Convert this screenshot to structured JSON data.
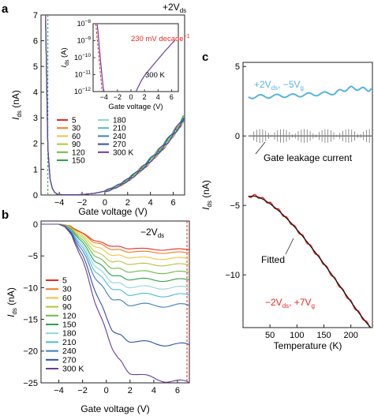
{
  "figure": {
    "bg": "#ffffff",
    "axis_color": "#222222"
  },
  "panels": [
    {
      "letter": "a"
    },
    {
      "letter": "b"
    },
    {
      "letter": "c"
    }
  ],
  "temps": [
    "5",
    "30",
    "60",
    "90",
    "120",
    "150",
    "180",
    "210",
    "240",
    "270",
    "300 K"
  ],
  "temp_colors": [
    "#e32b22",
    "#f07d1d",
    "#f5c23d",
    "#b7c43a",
    "#6abd45",
    "#2aa34a",
    "#8fd8d3",
    "#4ebbd3",
    "#3b7fbd",
    "#2c52a1",
    "#6a3d9a"
  ],
  "chart_data": [
    {
      "id": "a",
      "type": "line",
      "annotation_top": "+2V",
      "annotation_top_sub": "ds",
      "xlabel": "Gate voltage (V)",
      "ylabel": "I",
      "ylabel_sub": "ds",
      "ylabel_unit": " (nA)",
      "xlim": [
        -5.6,
        7
      ],
      "ylim": [
        0,
        7
      ],
      "xticks": [
        -4,
        -2,
        0,
        2,
        4,
        6
      ],
      "yticks": [
        0,
        1,
        2,
        3,
        4,
        5,
        6,
        7
      ],
      "threshold_x": -5.0,
      "series_x": [
        -5.2,
        -5.0,
        -4.8,
        -4.6,
        -4.4,
        -4.2,
        -4.0,
        -3.5,
        -3.0,
        -2.5,
        -2.0,
        -1.5,
        -1.0,
        -0.5,
        0,
        0.5,
        1.0,
        1.5,
        2.0,
        2.5,
        3.0,
        3.5,
        4.0,
        4.5,
        5.0,
        5.5,
        6.0,
        6.5,
        7.0
      ],
      "series": [
        {
          "name": "5",
          "values": [
            7.0,
            1.8,
            0.6,
            0.25,
            0.1,
            0.04,
            0.02,
            0.01,
            0.01,
            0.01,
            0.02,
            0.04,
            0.06,
            0.1,
            0.15,
            0.22,
            0.32,
            0.42,
            0.58,
            0.72,
            0.92,
            1.1,
            1.32,
            1.55,
            1.78,
            2.05,
            2.35,
            2.65,
            3.0
          ]
        },
        {
          "name": "30",
          "values": [
            6.9,
            1.8,
            0.6,
            0.25,
            0.1,
            0.04,
            0.02,
            0.01,
            0.01,
            0.01,
            0.02,
            0.04,
            0.06,
            0.1,
            0.15,
            0.22,
            0.32,
            0.42,
            0.58,
            0.72,
            0.92,
            1.1,
            1.32,
            1.55,
            1.78,
            2.05,
            2.35,
            2.65,
            2.95
          ]
        },
        {
          "name": "60",
          "values": [
            6.8,
            1.8,
            0.6,
            0.25,
            0.1,
            0.04,
            0.02,
            0.01,
            0.01,
            0.01,
            0.02,
            0.04,
            0.06,
            0.1,
            0.15,
            0.22,
            0.32,
            0.44,
            0.6,
            0.75,
            0.95,
            1.12,
            1.35,
            1.58,
            1.82,
            2.08,
            2.38,
            2.68,
            3.0
          ]
        },
        {
          "name": "90",
          "values": [
            6.8,
            1.8,
            0.6,
            0.25,
            0.1,
            0.04,
            0.02,
            0.01,
            0.01,
            0.01,
            0.02,
            0.04,
            0.06,
            0.1,
            0.15,
            0.22,
            0.32,
            0.45,
            0.6,
            0.76,
            0.96,
            1.14,
            1.38,
            1.6,
            1.85,
            2.1,
            2.4,
            2.7,
            3.05
          ]
        },
        {
          "name": "120",
          "values": [
            6.8,
            1.8,
            0.6,
            0.25,
            0.1,
            0.04,
            0.02,
            0.01,
            0.01,
            0.01,
            0.02,
            0.04,
            0.06,
            0.1,
            0.15,
            0.22,
            0.32,
            0.45,
            0.6,
            0.76,
            0.96,
            1.15,
            1.38,
            1.62,
            1.86,
            2.12,
            2.42,
            2.72,
            3.05
          ]
        },
        {
          "name": "150",
          "values": [
            6.8,
            1.8,
            0.6,
            0.25,
            0.1,
            0.04,
            0.02,
            0.01,
            0.01,
            0.01,
            0.02,
            0.04,
            0.06,
            0.1,
            0.15,
            0.22,
            0.32,
            0.45,
            0.6,
            0.76,
            0.96,
            1.15,
            1.38,
            1.62,
            1.86,
            2.12,
            2.42,
            2.72,
            3.05
          ]
        },
        {
          "name": "180",
          "values": [
            6.8,
            1.8,
            0.6,
            0.25,
            0.1,
            0.04,
            0.02,
            0.01,
            0.01,
            0.01,
            0.02,
            0.04,
            0.06,
            0.1,
            0.15,
            0.22,
            0.32,
            0.44,
            0.58,
            0.74,
            0.94,
            1.12,
            1.35,
            1.58,
            1.82,
            2.08,
            2.38,
            2.68,
            3.0
          ]
        },
        {
          "name": "210",
          "values": [
            6.8,
            1.8,
            0.6,
            0.25,
            0.1,
            0.04,
            0.02,
            0.01,
            0.01,
            0.01,
            0.02,
            0.04,
            0.06,
            0.1,
            0.15,
            0.22,
            0.32,
            0.44,
            0.58,
            0.74,
            0.94,
            1.12,
            1.35,
            1.58,
            1.82,
            2.08,
            2.38,
            2.68,
            3.0
          ]
        },
        {
          "name": "240",
          "values": [
            6.8,
            1.8,
            0.6,
            0.25,
            0.1,
            0.04,
            0.02,
            0.01,
            0.01,
            0.01,
            0.02,
            0.04,
            0.06,
            0.1,
            0.15,
            0.22,
            0.32,
            0.44,
            0.58,
            0.74,
            0.94,
            1.12,
            1.35,
            1.58,
            1.82,
            2.08,
            2.38,
            2.68,
            3.0
          ]
        },
        {
          "name": "270",
          "values": [
            6.8,
            1.8,
            0.6,
            0.25,
            0.1,
            0.04,
            0.02,
            0.01,
            0.01,
            0.01,
            0.02,
            0.04,
            0.06,
            0.1,
            0.15,
            0.22,
            0.32,
            0.44,
            0.58,
            0.74,
            0.94,
            1.12,
            1.35,
            1.58,
            1.82,
            2.08,
            2.38,
            2.68,
            3.0
          ]
        },
        {
          "name": "300 K",
          "values": [
            7.0,
            1.8,
            0.6,
            0.25,
            0.1,
            0.04,
            0.02,
            0.01,
            0.01,
            0.01,
            0.02,
            0.04,
            0.06,
            0.1,
            0.15,
            0.22,
            0.32,
            0.44,
            0.58,
            0.74,
            0.94,
            1.12,
            1.35,
            1.58,
            1.82,
            2.08,
            2.38,
            2.68,
            3.0
          ]
        }
      ],
      "inset": {
        "type": "line",
        "ylabel": "I",
        "ylabel_sub": "ds",
        "ylabel_unit": " (A)",
        "xlabel": "Gate voltage (V)",
        "yscale": "log",
        "xlim": [
          -5.6,
          7
        ],
        "ylim_exp": [
          -12,
          -8
        ],
        "xticks": [
          -4,
          -2,
          0,
          2,
          4,
          6
        ],
        "yticks_exp": [
          -12,
          -11,
          -10,
          -9,
          -8
        ],
        "temperature_label": "300 K",
        "annotation": "230 mV decade",
        "annotation_sup": "−1",
        "annotation_color": "#e32b22",
        "fit_x": [
          -5.2,
          -3.9
        ],
        "fit_exp": [
          -8.0,
          -13.6
        ],
        "series_x": [
          -5.0,
          -4.9,
          -4.8,
          -4.7,
          -4.6,
          -4.5,
          -4.4,
          -4.3,
          -4.2,
          -4.1,
          -4.0,
          -3.9,
          -3.8,
          -3.6,
          -3.4,
          -3.2,
          -3.0,
          -2.5,
          -2.0,
          -1.5,
          -1.0,
          -0.5,
          0,
          0.5,
          1.0,
          1.5,
          2.0,
          2.5,
          3.0,
          3.5,
          4.0,
          4.5,
          5.0,
          5.5,
          6.0,
          6.5
        ],
        "series_exp": [
          -8.05,
          -8.4,
          -8.85,
          -9.3,
          -9.75,
          -10.2,
          -10.6,
          -11.0,
          -11.4,
          -11.8,
          -12.1,
          -12.3,
          -12.4,
          -12.45,
          -12.5,
          -12.5,
          -12.5,
          -12.5,
          -12.45,
          -12.42,
          -12.4,
          -12.35,
          -12.3,
          -12.2,
          -11.8,
          -11.4,
          -11.1,
          -10.85,
          -10.6,
          -10.35,
          -10.1,
          -9.85,
          -9.6,
          -9.38,
          -9.15,
          -8.95
        ]
      }
    },
    {
      "id": "b",
      "type": "line",
      "annotation_top": "−2V",
      "annotation_top_sub": "ds",
      "xlabel": "Gate voltage (V)",
      "ylabel": "I",
      "ylabel_sub": "ds",
      "ylabel_unit": " (nA)",
      "xlim": [
        -5.5,
        7
      ],
      "ylim": [
        -25,
        0.5
      ],
      "xticks": [
        -4,
        -2,
        0,
        2,
        4,
        6
      ],
      "yticks": [
        0,
        -5,
        -10,
        -15,
        -20,
        -25
      ],
      "marker_x": 6.8,
      "series_x": [
        -5.5,
        -4.0,
        -3.5,
        -3.0,
        -2.5,
        -2.0,
        -1.5,
        -1.0,
        -0.5,
        0,
        0.5,
        1.0,
        1.5,
        2.0,
        3.0,
        4.0,
        5.0,
        6.0,
        7.0
      ],
      "series": [
        {
          "name": "5",
          "values": [
            0,
            0,
            -0.1,
            -0.3,
            -0.8,
            -1.5,
            -2.0,
            -2.5,
            -2.9,
            -3.2,
            -3.4,
            -3.6,
            -3.7,
            -3.8,
            -3.9,
            -3.95,
            -4.0,
            -4.0,
            -4.0
          ]
        },
        {
          "name": "30",
          "values": [
            0,
            0,
            -0.1,
            -0.4,
            -0.9,
            -1.6,
            -2.2,
            -2.8,
            -3.2,
            -3.6,
            -3.9,
            -4.1,
            -4.2,
            -4.3,
            -4.4,
            -4.4,
            -4.5,
            -4.5,
            -4.5
          ]
        },
        {
          "name": "60",
          "values": [
            0,
            0,
            -0.1,
            -0.5,
            -1.1,
            -1.9,
            -2.7,
            -3.4,
            -3.9,
            -4.4,
            -4.8,
            -5.0,
            -5.1,
            -5.2,
            -5.3,
            -5.4,
            -5.4,
            -5.4,
            -5.4
          ]
        },
        {
          "name": "90",
          "values": [
            0,
            0,
            -0.2,
            -0.6,
            -1.3,
            -2.2,
            -3.2,
            -4.1,
            -4.8,
            -5.4,
            -5.8,
            -6.0,
            -6.1,
            -6.2,
            -6.3,
            -6.4,
            -6.4,
            -6.4,
            -6.4
          ]
        },
        {
          "name": "120",
          "values": [
            0,
            0,
            -0.2,
            -0.7,
            -1.5,
            -2.6,
            -3.7,
            -4.8,
            -5.6,
            -6.3,
            -6.8,
            -7.1,
            -7.3,
            -7.4,
            -7.5,
            -7.6,
            -7.6,
            -7.6,
            -7.6
          ]
        },
        {
          "name": "150",
          "values": [
            0,
            0,
            -0.2,
            -0.8,
            -1.7,
            -3.0,
            -4.3,
            -5.6,
            -6.5,
            -7.3,
            -7.9,
            -8.3,
            -8.5,
            -8.6,
            -8.7,
            -8.8,
            -8.8,
            -8.8,
            -8.8
          ]
        },
        {
          "name": "180",
          "values": [
            0,
            0,
            -0.3,
            -0.9,
            -2.0,
            -3.4,
            -4.9,
            -6.3,
            -7.4,
            -8.3,
            -9.0,
            -9.4,
            -9.7,
            -9.8,
            -9.9,
            -10.0,
            -10.0,
            -10.0,
            -10.0
          ]
        },
        {
          "name": "210",
          "values": [
            0,
            0,
            -0.3,
            -1.0,
            -2.2,
            -3.8,
            -5.5,
            -7.1,
            -8.3,
            -9.3,
            -10.0,
            -10.5,
            -10.8,
            -11.0,
            -11.1,
            -11.2,
            -11.2,
            -11.2,
            -11.2
          ]
        },
        {
          "name": "240",
          "values": [
            0,
            0,
            -0.3,
            -1.1,
            -2.5,
            -4.3,
            -6.2,
            -8.1,
            -9.6,
            -10.8,
            -11.6,
            -12.1,
            -12.4,
            -12.6,
            -12.7,
            -12.8,
            -12.8,
            -12.8,
            -12.8
          ]
        },
        {
          "name": "270",
          "values": [
            0,
            0,
            -0.4,
            -1.3,
            -2.9,
            -5.0,
            -7.5,
            -10.0,
            -12.5,
            -14.7,
            -16.5,
            -17.5,
            -18.0,
            -18.3,
            -18.6,
            -18.8,
            -18.9,
            -19.0,
            -19.0
          ]
        },
        {
          "name": "300 K",
          "values": [
            0,
            0,
            -0.4,
            -1.5,
            -3.3,
            -5.8,
            -8.8,
            -11.8,
            -14.6,
            -17.0,
            -19.3,
            -21.3,
            -22.5,
            -23.3,
            -23.9,
            -24.3,
            -24.6,
            -24.8,
            -25.0
          ]
        }
      ]
    },
    {
      "id": "c",
      "type": "line",
      "xlabel": "Temperature (K)",
      "ylabel": "I",
      "ylabel_sub": "ds",
      "ylabel_unit": " (nA)",
      "xlim": [
        0,
        240
      ],
      "ylim": [
        -13.8,
        5.3
      ],
      "xticks": [
        50,
        100,
        150,
        200
      ],
      "yticks": [
        5,
        0,
        -5,
        -10
      ],
      "label_top": "+2V",
      "label_top_sub1": "ds",
      "label_top_mid": ", −5V",
      "label_top_sub2": "g",
      "label_top_color": "#56b4e0",
      "label_leak": "Gate leakage current",
      "label_fit": "Fitted",
      "label_bottom": "−2V",
      "label_bottom_sub1": "ds",
      "label_bottom_mid": ", +7V",
      "label_bottom_sub2": "g",
      "label_bottom_color": "#e32b22",
      "series": [
        {
          "name": "+2Vds, −5Vg",
          "color": "#56b4e0",
          "x": [
            10,
            30,
            50,
            70,
            90,
            110,
            130,
            150,
            170,
            185,
            200,
            215,
            230,
            240
          ],
          "y": [
            2.8,
            2.85,
            2.85,
            2.9,
            2.9,
            2.95,
            3.0,
            3.05,
            3.1,
            3.3,
            3.45,
            3.4,
            3.35,
            3.3
          ]
        },
        {
          "name": "Gate leakage current",
          "color": "#777777",
          "x": [
            10,
            240
          ],
          "y": [
            0,
            0
          ]
        },
        {
          "name": "−2Vds, +7Vg",
          "color": "#e32b22",
          "x": [
            10,
            20,
            30,
            40,
            50,
            60,
            70,
            80,
            90,
            100,
            110,
            120,
            130,
            140,
            150,
            160,
            170,
            180,
            190,
            200,
            210,
            220,
            230,
            240
          ],
          "y": [
            -4.35,
            -4.3,
            -4.4,
            -4.6,
            -4.85,
            -5.15,
            -5.5,
            -5.9,
            -6.3,
            -6.75,
            -7.2,
            -7.7,
            -8.2,
            -8.7,
            -9.2,
            -9.75,
            -10.3,
            -10.85,
            -11.4,
            -11.95,
            -12.5,
            -13.0,
            -13.5,
            -13.9
          ]
        },
        {
          "name": "Fitted",
          "color": "#111111",
          "x": [
            10,
            20,
            30,
            40,
            50,
            60,
            70,
            80,
            90,
            100,
            110,
            120,
            130,
            140,
            150,
            160,
            170,
            180,
            190,
            200,
            210,
            220,
            230,
            240
          ],
          "y": [
            -4.35,
            -4.33,
            -4.42,
            -4.62,
            -4.88,
            -5.18,
            -5.52,
            -5.9,
            -6.3,
            -6.74,
            -7.2,
            -7.68,
            -8.18,
            -8.68,
            -9.2,
            -9.73,
            -10.27,
            -10.82,
            -11.38,
            -11.93,
            -12.48,
            -13.0,
            -13.5,
            -13.95
          ]
        }
      ]
    }
  ]
}
